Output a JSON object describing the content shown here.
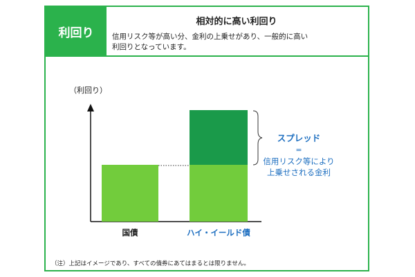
{
  "header": {
    "label": "利回り",
    "title": "相対的に高い利回り",
    "desc_line1": "信用リスク等が高い分、金利の上乗せがあり、一般的に高い",
    "desc_line2": "利回りとなっています。"
  },
  "chart": {
    "y_axis_label": "（利回り）",
    "bars": [
      {
        "label": "国債"
      },
      {
        "label": "ハイ・イールド債"
      }
    ],
    "spread_title": "スプレッド",
    "spread_equals": "=",
    "spread_desc_line1": "信用リスク等により",
    "spread_desc_line2": "上乗せされる金利"
  },
  "colors": {
    "frame": "#2bb24c",
    "bar_light": "#72cc3c",
    "bar_dark": "#1a9a4a",
    "accent_blue": "#1e6fc0"
  },
  "note": "（注）上記はイメージであり、すべての債券にあてはまるとは限りません。"
}
